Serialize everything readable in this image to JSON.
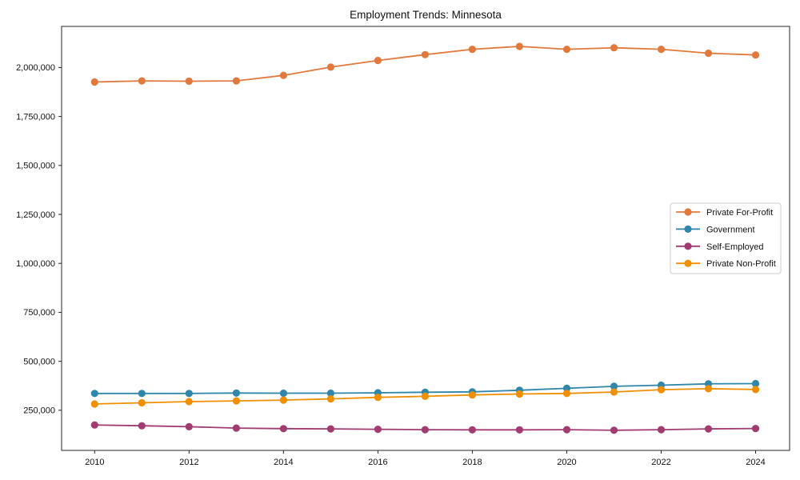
{
  "title": "Employment Trends: Minnesota",
  "chart_data": {
    "type": "line",
    "title": "Employment Trends: Minnesota",
    "xlabel": "",
    "ylabel": "",
    "x": [
      2010,
      2011,
      2012,
      2013,
      2014,
      2015,
      2016,
      2017,
      2018,
      2019,
      2020,
      2021,
      2022,
      2023,
      2024
    ],
    "series": [
      {
        "name": "Private For-Profit",
        "color": "#E2793C",
        "values": [
          1926000,
          1932000,
          1930000,
          1932000,
          1960000,
          2002000,
          2036000,
          2066000,
          2093000,
          2108000,
          2093000,
          2101000,
          2093000,
          2073000,
          2064000
        ]
      },
      {
        "name": "Government",
        "color": "#2E86AB",
        "values": [
          336000,
          336000,
          336000,
          338000,
          337000,
          337000,
          339000,
          342000,
          344000,
          352000,
          362000,
          372000,
          378000,
          385000,
          386000
        ]
      },
      {
        "name": "Self-Employed",
        "color": "#A23B72",
        "values": [
          175000,
          171000,
          166000,
          159000,
          156000,
          155000,
          153000,
          151000,
          150000,
          150000,
          151000,
          148000,
          151000,
          155000,
          157000
        ]
      },
      {
        "name": "Private Non-Profit",
        "color": "#F18F01",
        "values": [
          282000,
          288000,
          294000,
          298000,
          302000,
          308000,
          316000,
          321000,
          328000,
          333000,
          336000,
          343000,
          355000,
          360000,
          356000
        ]
      }
    ],
    "xticks": [
      2010,
      2012,
      2014,
      2016,
      2018,
      2020,
      2022,
      2024
    ],
    "yticks": [
      250000,
      500000,
      750000,
      1000000,
      1250000,
      1500000,
      1750000,
      2000000
    ],
    "xlim": [
      2009.3,
      2024.72
    ],
    "ylim": [
      45000,
      2210000
    ],
    "grid": false,
    "marker": "o",
    "legend_position": "center right",
    "axis_color": "#262626",
    "background_color": "#ffffff"
  }
}
